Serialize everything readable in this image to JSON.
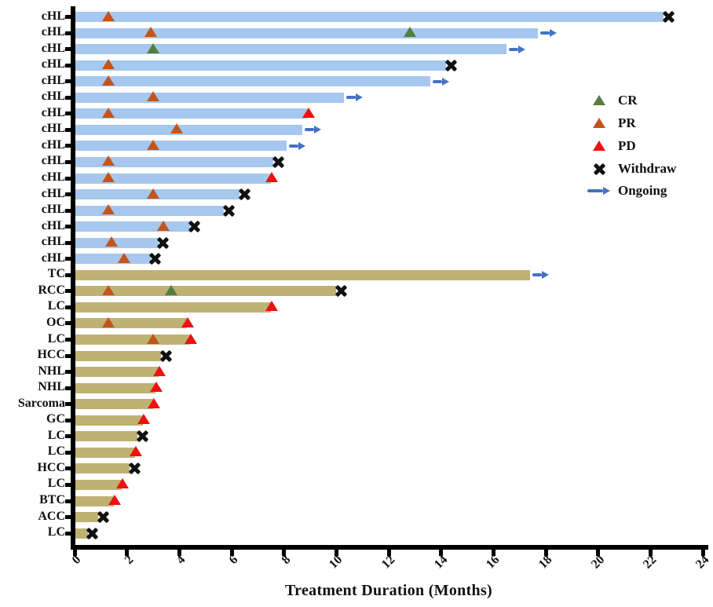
{
  "chart_data": {
    "type": "bar",
    "variant": "swimmer-plot",
    "orientation": "horizontal",
    "title": "",
    "xlabel": "Treatment Duration (Months)",
    "ylabel": "",
    "xlim": [
      0,
      24
    ],
    "xticks": [
      0,
      2,
      4,
      6,
      8,
      10,
      12,
      14,
      16,
      18,
      20,
      22,
      24
    ],
    "grid": false,
    "legend_position": "upper-right",
    "legend": [
      {
        "label": "CR",
        "marker": "triangle",
        "color": "#567d3e"
      },
      {
        "label": "PR",
        "marker": "triangle",
        "color": "#c2551e"
      },
      {
        "label": "PD",
        "marker": "triangle",
        "color": "#ee1111"
      },
      {
        "label": "Withdraw",
        "marker": "x",
        "color": "#111111"
      },
      {
        "label": "Ongoing",
        "marker": "arrow",
        "color": "#4472c4"
      }
    ],
    "colors": {
      "chl_bar": "#a6c7ee",
      "other_bar": "#bfb173",
      "cr": "#567d3e",
      "pr": "#c2551e",
      "pd": "#ee1111",
      "withdraw": "#111111",
      "ongoing": "#4472c4",
      "axis": "#000000"
    },
    "bars": [
      {
        "label": "cHL",
        "group": "chl",
        "duration": 22.5,
        "end_event": "Withdraw",
        "events": [
          {
            "type": "PR",
            "month": 1.3
          }
        ]
      },
      {
        "label": "cHL",
        "group": "chl",
        "duration": 17.7,
        "end_event": "Ongoing",
        "events": [
          {
            "type": "PR",
            "month": 2.9
          },
          {
            "type": "CR",
            "month": 12.8
          }
        ]
      },
      {
        "label": "cHL",
        "group": "chl",
        "duration": 16.5,
        "end_event": "Ongoing",
        "events": [
          {
            "type": "CR",
            "month": 3.0
          }
        ]
      },
      {
        "label": "cHL",
        "group": "chl",
        "duration": 14.2,
        "end_event": "Withdraw",
        "events": [
          {
            "type": "PR",
            "month": 1.3
          }
        ]
      },
      {
        "label": "cHL",
        "group": "chl",
        "duration": 13.6,
        "end_event": "Ongoing",
        "events": [
          {
            "type": "PR",
            "month": 1.3
          }
        ]
      },
      {
        "label": "cHL",
        "group": "chl",
        "duration": 10.3,
        "end_event": "Ongoing",
        "events": [
          {
            "type": "PR",
            "month": 3.0
          }
        ]
      },
      {
        "label": "cHL",
        "group": "chl",
        "duration": 8.9,
        "end_event": "PD",
        "events": [
          {
            "type": "PR",
            "month": 1.3
          }
        ]
      },
      {
        "label": "cHL",
        "group": "chl",
        "duration": 8.7,
        "end_event": "Ongoing",
        "events": [
          {
            "type": "PR",
            "month": 3.9
          }
        ]
      },
      {
        "label": "cHL",
        "group": "chl",
        "duration": 8.1,
        "end_event": "Ongoing",
        "events": [
          {
            "type": "PR",
            "month": 3.0
          }
        ]
      },
      {
        "label": "cHL",
        "group": "chl",
        "duration": 7.6,
        "end_event": "Withdraw",
        "events": [
          {
            "type": "PR",
            "month": 1.3
          }
        ]
      },
      {
        "label": "cHL",
        "group": "chl",
        "duration": 7.5,
        "end_event": "PD",
        "events": [
          {
            "type": "PR",
            "month": 1.3
          }
        ]
      },
      {
        "label": "cHL",
        "group": "chl",
        "duration": 6.3,
        "end_event": "Withdraw",
        "events": [
          {
            "type": "PR",
            "month": 3.0
          }
        ]
      },
      {
        "label": "cHL",
        "group": "chl",
        "duration": 5.7,
        "end_event": "Withdraw",
        "events": [
          {
            "type": "PR",
            "month": 1.3
          }
        ]
      },
      {
        "label": "cHL",
        "group": "chl",
        "duration": 4.4,
        "end_event": "Withdraw",
        "events": [
          {
            "type": "PR",
            "month": 3.4
          }
        ]
      },
      {
        "label": "cHL",
        "group": "chl",
        "duration": 3.2,
        "end_event": "Withdraw",
        "events": [
          {
            "type": "PR",
            "month": 1.4
          }
        ]
      },
      {
        "label": "cHL",
        "group": "chl",
        "duration": 2.9,
        "end_event": "Withdraw",
        "events": [
          {
            "type": "PR",
            "month": 1.9
          }
        ]
      },
      {
        "label": "TC",
        "group": "other",
        "duration": 17.4,
        "end_event": "Ongoing",
        "events": []
      },
      {
        "label": "RCC",
        "group": "other",
        "duration": 10.0,
        "end_event": "Withdraw",
        "events": [
          {
            "type": "PR",
            "month": 1.3
          },
          {
            "type": "CR",
            "month": 3.7
          }
        ]
      },
      {
        "label": "LC",
        "group": "other",
        "duration": 7.5,
        "end_event": "PD",
        "events": []
      },
      {
        "label": "OC",
        "group": "other",
        "duration": 4.3,
        "end_event": "PD",
        "events": [
          {
            "type": "PR",
            "month": 1.3
          }
        ]
      },
      {
        "label": "LC",
        "group": "other",
        "duration": 4.4,
        "end_event": "PD",
        "events": [
          {
            "type": "PR",
            "month": 3.0
          }
        ]
      },
      {
        "label": "HCC",
        "group": "other",
        "duration": 3.3,
        "end_event": "Withdraw",
        "events": []
      },
      {
        "label": "NHL",
        "group": "other",
        "duration": 3.2,
        "end_event": "PD",
        "events": []
      },
      {
        "label": "NHL",
        "group": "other",
        "duration": 3.1,
        "end_event": "PD",
        "events": []
      },
      {
        "label": "Sarcoma",
        "group": "other",
        "duration": 3.0,
        "end_event": "PD",
        "events": []
      },
      {
        "label": "GC",
        "group": "other",
        "duration": 2.6,
        "end_event": "PD",
        "events": []
      },
      {
        "label": "LC",
        "group": "other",
        "duration": 2.4,
        "end_event": "Withdraw",
        "events": []
      },
      {
        "label": "LC",
        "group": "other",
        "duration": 2.3,
        "end_event": "PD",
        "events": []
      },
      {
        "label": "HCC",
        "group": "other",
        "duration": 2.1,
        "end_event": "Withdraw",
        "events": []
      },
      {
        "label": "LC",
        "group": "other",
        "duration": 1.8,
        "end_event": "PD",
        "events": []
      },
      {
        "label": "BTC",
        "group": "other",
        "duration": 1.5,
        "end_event": "PD",
        "events": []
      },
      {
        "label": "ACC",
        "group": "other",
        "duration": 0.9,
        "end_event": "Withdraw",
        "events": []
      },
      {
        "label": "LC",
        "group": "other",
        "duration": 0.5,
        "end_event": "Withdraw",
        "events": []
      }
    ]
  }
}
